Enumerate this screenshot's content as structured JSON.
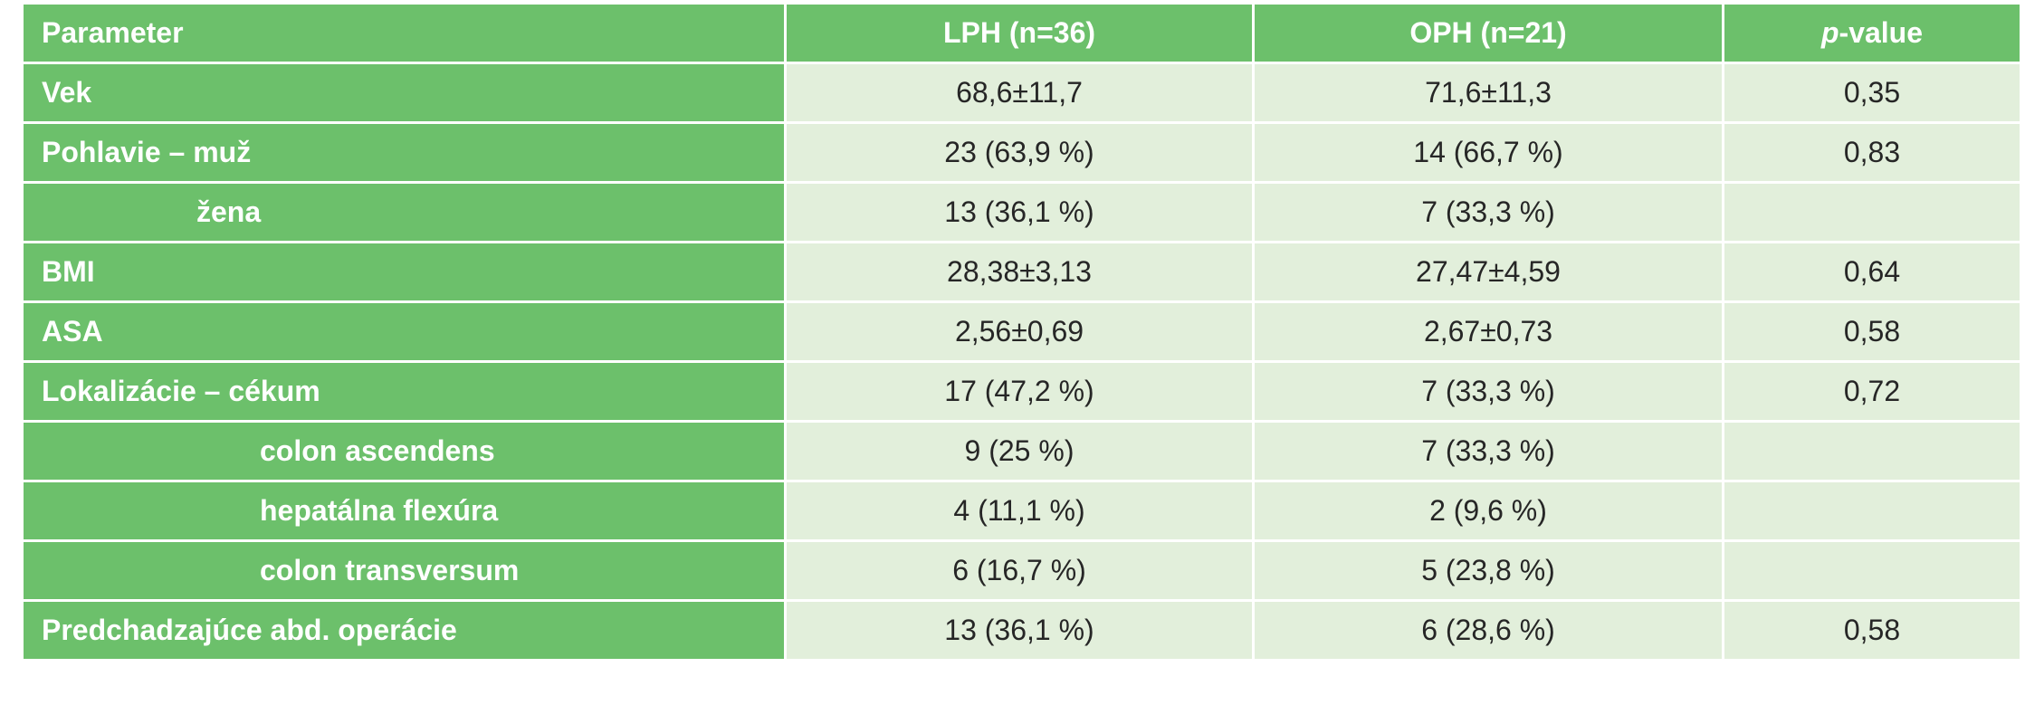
{
  "table": {
    "headers": {
      "parameter": "Parameter",
      "lph": "LPH (n=36)",
      "oph": "OPH (n=21)",
      "p_italic": "p",
      "p_rest": "-value"
    },
    "rows": [
      {
        "label": "Vek",
        "sub": false,
        "lph": "68,6±11,7",
        "oph": "71,6±11,3",
        "p": "0,35"
      },
      {
        "label": "Pohlavie – muž",
        "sub": false,
        "lph": "23 (63,9 %)",
        "oph": "14 (66,7 %)",
        "p": "0,83"
      },
      {
        "label": "žena",
        "sub": true,
        "lph": "13 (36,1 %)",
        "oph": "7 (33,3 %)",
        "p": ""
      },
      {
        "label": "BMI",
        "sub": false,
        "lph": "28,38±3,13",
        "oph": "27,47±4,59",
        "p": "0,64"
      },
      {
        "label": "ASA",
        "sub": false,
        "lph": "2,56±0,69",
        "oph": "2,67±0,73",
        "p": "0,58"
      },
      {
        "label": "Lokalizácie – cékum",
        "sub": false,
        "lph": "17 (47,2 %)",
        "oph": "7 (33,3 %)",
        "p": "0,72"
      },
      {
        "label": "colon ascendens",
        "sub": true,
        "lph": "9 (25 %)",
        "oph": "7 (33,3 %)",
        "p": ""
      },
      {
        "label": "hepatálna flexúra",
        "sub": true,
        "lph": "4 (11,1 %)",
        "oph": "2 (9,6 %)",
        "p": ""
      },
      {
        "label": "colon transversum",
        "sub": true,
        "lph": "6 (16,7 %)",
        "oph": "5 (23,8 %)",
        "p": ""
      },
      {
        "label": "Predchadzajúce abd. operácie",
        "sub": false,
        "lph": "13 (36,1 %)",
        "oph": "6 (28,6 %)",
        "p": "0,58"
      }
    ]
  }
}
